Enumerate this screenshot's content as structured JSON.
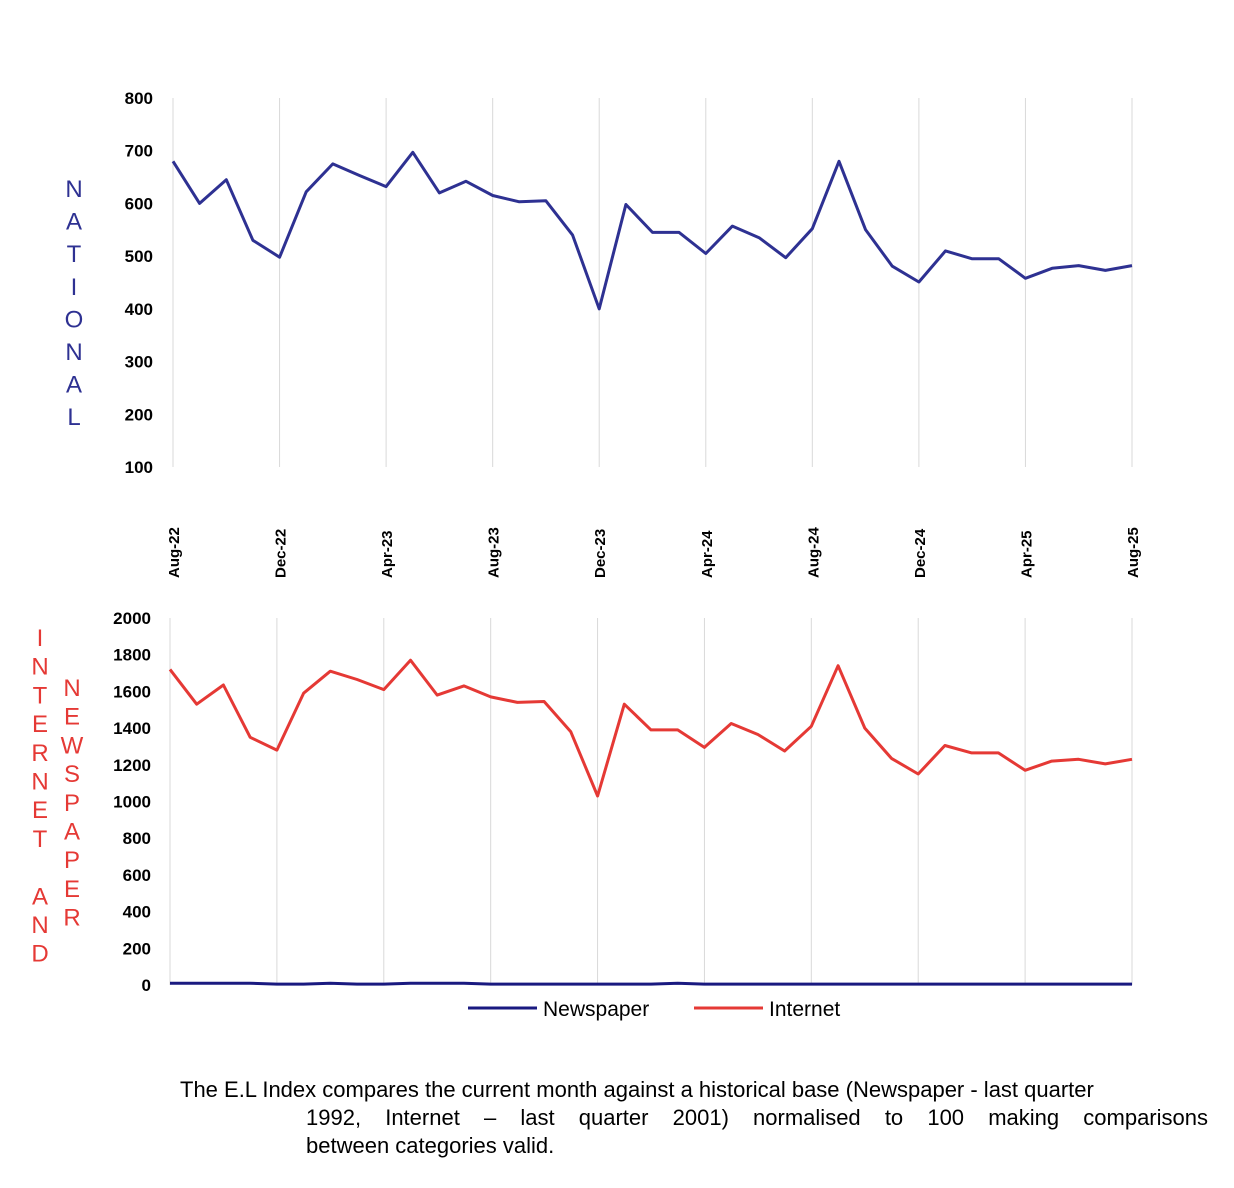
{
  "chart_data": [
    {
      "type": "line",
      "side_label": "NATIONAL",
      "categories": [
        "Aug-22",
        "Sep-22",
        "Oct-22",
        "Nov-22",
        "Dec-22",
        "Jan-23",
        "Feb-23",
        "Mar-23",
        "Apr-23",
        "May-23",
        "Jun-23",
        "Jul-23",
        "Aug-23",
        "Sep-23",
        "Oct-23",
        "Nov-23",
        "Dec-23",
        "Jan-24",
        "Feb-24",
        "Mar-24",
        "Apr-24",
        "May-24",
        "Jun-24",
        "Jul-24",
        "Aug-24",
        "Sep-24",
        "Oct-24",
        "Nov-24",
        "Dec-24",
        "Jan-25",
        "Feb-25",
        "Mar-25",
        "Apr-25",
        "May-25",
        "Jun-25",
        "Jul-25",
        "Aug-25"
      ],
      "tick_labels": [
        "Aug-22",
        "Dec-22",
        "Apr-23",
        "Aug-23",
        "Dec-23",
        "Apr-24",
        "Aug-24",
        "Dec-24",
        "Apr-25",
        "Aug-25"
      ],
      "ylim": [
        100,
        800
      ],
      "yticks": [
        100,
        200,
        300,
        400,
        500,
        600,
        700,
        800
      ],
      "series": [
        {
          "name": "National",
          "color": "#2e3192",
          "values": [
            680,
            600,
            645,
            530,
            498,
            622,
            675,
            653,
            632,
            697,
            620,
            642,
            615,
            603,
            605,
            540,
            400,
            598,
            545,
            545,
            505,
            557,
            535,
            497,
            552,
            680,
            550,
            481,
            451,
            510,
            495,
            495,
            458,
            477,
            482,
            473,
            482
          ]
        }
      ]
    },
    {
      "type": "line",
      "side_label_1": "INTERNET AND",
      "side_label_2": "NEWSPAPER",
      "categories": [
        "Aug-22",
        "Sep-22",
        "Oct-22",
        "Nov-22",
        "Dec-22",
        "Jan-23",
        "Feb-23",
        "Mar-23",
        "Apr-23",
        "May-23",
        "Jun-23",
        "Jul-23",
        "Aug-23",
        "Sep-23",
        "Oct-23",
        "Nov-23",
        "Dec-23",
        "Jan-24",
        "Feb-24",
        "Mar-24",
        "Apr-24",
        "May-24",
        "Jun-24",
        "Jul-24",
        "Aug-24",
        "Sep-24",
        "Oct-24",
        "Nov-24",
        "Dec-24",
        "Jan-25",
        "Feb-25",
        "Mar-25",
        "Apr-25",
        "May-25",
        "Jun-25",
        "Jul-25",
        "Aug-25"
      ],
      "ylim": [
        0,
        2000
      ],
      "yticks": [
        0,
        200,
        400,
        600,
        800,
        1000,
        1200,
        1400,
        1600,
        1800,
        2000
      ],
      "series": [
        {
          "name": "Newspaper",
          "color": "#1a1a80",
          "values": [
            10,
            10,
            10,
            10,
            5,
            5,
            10,
            5,
            5,
            10,
            10,
            10,
            5,
            5,
            5,
            5,
            5,
            5,
            5,
            10,
            5,
            5,
            5,
            5,
            5,
            5,
            5,
            5,
            5,
            5,
            5,
            5,
            5,
            5,
            5,
            5,
            5
          ]
        },
        {
          "name": "Internet",
          "color": "#e53935",
          "values": [
            1720,
            1530,
            1635,
            1350,
            1280,
            1590,
            1710,
            1665,
            1610,
            1770,
            1580,
            1630,
            1570,
            1540,
            1545,
            1380,
            1030,
            1530,
            1390,
            1390,
            1295,
            1425,
            1365,
            1275,
            1410,
            1740,
            1400,
            1235,
            1150,
            1305,
            1265,
            1265,
            1170,
            1220,
            1230,
            1205,
            1230
          ]
        }
      ]
    }
  ],
  "caption": {
    "line1": "The E.L Index compares the current month against a historical base (Newspaper - last quarter",
    "line2": "1992, Internet – last quarter 2001) normalised to 100 making comparisons",
    "line3": "between categories valid."
  }
}
